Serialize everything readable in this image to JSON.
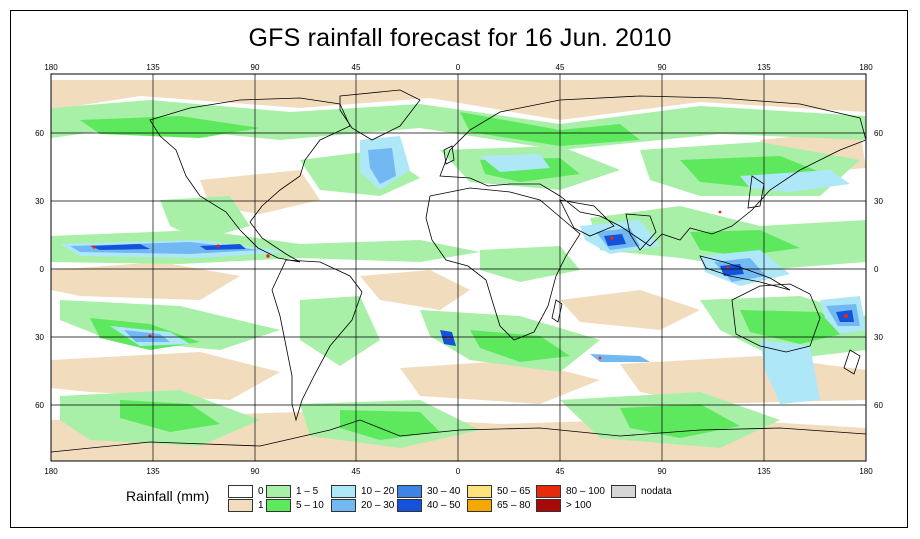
{
  "title": "GFS rainfall forecast for 16 Jun. 2010",
  "map": {
    "lon_ticks": [
      "180",
      "135",
      "90",
      "45",
      "0",
      "45",
      "90",
      "135",
      "180"
    ],
    "lat_ticks": [
      "60",
      "30",
      "0",
      "30",
      "60"
    ],
    "colors": {
      "ocean": "#ffffff",
      "coast": "#000000",
      "grid": "#000000"
    }
  },
  "legend": {
    "title": "Rainfall (mm)",
    "entries": [
      {
        "label": "0",
        "color": "#ffffff"
      },
      {
        "label": "1",
        "color": "#f2dcbe"
      },
      {
        "label": "1 – 5",
        "color": "#a8f0a8"
      },
      {
        "label": "5 – 10",
        "color": "#5ee85e"
      },
      {
        "label": "10 – 20",
        "color": "#aee8f8"
      },
      {
        "label": "20 – 30",
        "color": "#72b8f2"
      },
      {
        "label": "30 – 40",
        "color": "#3e84e6"
      },
      {
        "label": "40 – 50",
        "color": "#1452dc"
      },
      {
        "label": "50 – 65",
        "color": "#fbe27a"
      },
      {
        "label": "65 – 80",
        "color": "#f6a800"
      },
      {
        "label": "80 – 100",
        "color": "#e82a0c"
      },
      {
        "label": "> 100",
        "color": "#a80808"
      },
      {
        "label": "nodata",
        "color": "#d6d6d6"
      }
    ]
  }
}
